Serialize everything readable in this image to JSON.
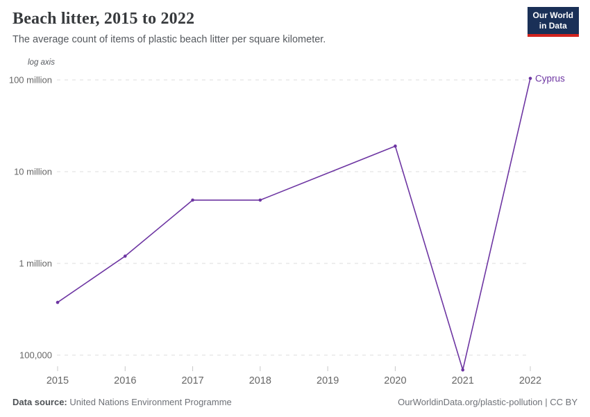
{
  "header": {
    "title": "Beach litter, 2015 to 2022",
    "subtitle": "The average count of items of plastic beach litter per square kilometer.",
    "logo": {
      "line1": "Our World",
      "line2": "in Data"
    }
  },
  "chart_data": {
    "type": "line",
    "title": "Beach litter, 2015 to 2022",
    "axis_note": "log axis",
    "y_scale": "log",
    "grid": "horizontal dashed",
    "legend_position": "end-of-line label",
    "x_ticks": [
      2015,
      2016,
      2017,
      2018,
      2019,
      2020,
      2021,
      2022
    ],
    "y_ticks": [
      {
        "value": 100000,
        "label": "100,000"
      },
      {
        "value": 1000000,
        "label": "1 million"
      },
      {
        "value": 10000000,
        "label": "10 million"
      },
      {
        "value": 100000000,
        "label": "100 million"
      }
    ],
    "xlim": [
      2015,
      2022
    ],
    "ylim": [
      60000,
      110000000
    ],
    "series": [
      {
        "name": "Cyprus",
        "color": "#6d35a2",
        "x": [
          2015,
          2016,
          2017,
          2018,
          2020,
          2021,
          2022
        ],
        "values": [
          376000,
          1200000,
          4900000,
          4900000,
          19000000,
          69000,
          104000000
        ]
      }
    ]
  },
  "footer": {
    "source_label": "Data source:",
    "source_value": "United Nations Environment Programme",
    "attribution": "OurWorldinData.org/plastic-pollution | CC BY"
  },
  "colors": {
    "line": "#6d35a2",
    "grid": "#dcdcdc",
    "tick": "#c8c8c8",
    "axis_text": "#666666",
    "logo_bg": "#1a3057",
    "logo_accent": "#d2231e"
  }
}
